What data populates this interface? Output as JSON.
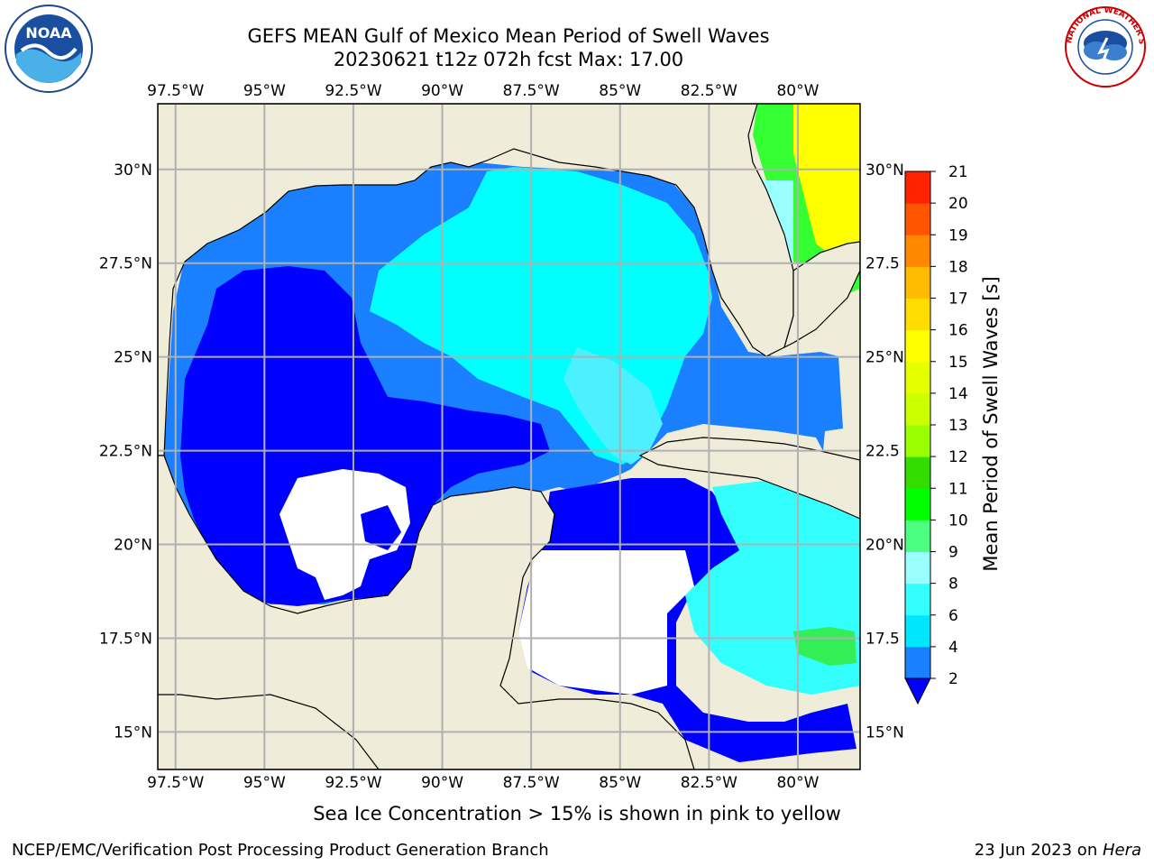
{
  "header": {
    "title": "GEFS MEAN Gulf of Mexico Mean Period of Swell Waves",
    "subtitle": "20230621 t12z 072h fcst   Max: 17.00"
  },
  "logos": {
    "left": {
      "icon": "noaa-logo-icon",
      "text": "NOAA"
    },
    "right": {
      "icon": "nws-logo-icon",
      "text": "NATIONAL WEATHER SERVICE"
    }
  },
  "map": {
    "lon_range": [
      -98.0,
      -78.25
    ],
    "lat_range": [
      14.0,
      31.75
    ],
    "lon_ticks": [
      {
        "value": -97.5,
        "label": "97.5°W"
      },
      {
        "value": -95.0,
        "label": "95°W"
      },
      {
        "value": -92.5,
        "label": "92.5°W"
      },
      {
        "value": -90.0,
        "label": "90°W"
      },
      {
        "value": -87.5,
        "label": "87.5°W"
      },
      {
        "value": -85.0,
        "label": "85°W"
      },
      {
        "value": -82.5,
        "label": "82.5°W"
      },
      {
        "value": -80.0,
        "label": "80°W"
      }
    ],
    "lat_ticks_left": [
      {
        "value": 30.0,
        "label": "30°N"
      },
      {
        "value": 27.5,
        "label": "27.5°N"
      },
      {
        "value": 25.0,
        "label": "25°N"
      },
      {
        "value": 22.5,
        "label": "22.5°N"
      },
      {
        "value": 20.0,
        "label": "20°N"
      },
      {
        "value": 17.5,
        "label": "17.5°N"
      },
      {
        "value": 15.0,
        "label": "15°N"
      }
    ],
    "lat_ticks_right": [
      {
        "value": 30.0,
        "label": "30°N"
      },
      {
        "value": 27.5,
        "label": "27.5"
      },
      {
        "value": 25.0,
        "label": "25°N"
      },
      {
        "value": 22.5,
        "label": "22.5"
      },
      {
        "value": 20.0,
        "label": "20°N"
      },
      {
        "value": 17.5,
        "label": "17.5"
      },
      {
        "value": 15.0,
        "label": "15°N"
      }
    ],
    "land_color": "#efecda",
    "grid_color": "#b0b0b0",
    "regions": [
      {
        "name": "deep-gulf-blue",
        "color": "#0000ff"
      },
      {
        "name": "mid-gulf-blue",
        "color": "#1a80ff"
      },
      {
        "name": "eastern-gulf-cyan",
        "color": "#00ffff"
      },
      {
        "name": "central-light-cyan",
        "color": "#4df0ff"
      },
      {
        "name": "atlantic-green",
        "color": "#33ff33"
      },
      {
        "name": "atlantic-yellow",
        "color": "#ffff00"
      }
    ]
  },
  "colorbar": {
    "label": "Mean Period of Swell Waves [s]",
    "levels": [
      2,
      4,
      6,
      8,
      9,
      10,
      11,
      12,
      13,
      14,
      15,
      16,
      17,
      18,
      19,
      20,
      21
    ],
    "tick_labels": [
      "2",
      "4",
      "6",
      "8",
      "9",
      "10",
      "11",
      "12",
      "13",
      "14",
      "15",
      "16",
      "17",
      "18",
      "19",
      "20",
      "21"
    ],
    "colors": [
      "#1a80ff",
      "#00e6ff",
      "#33ffff",
      "#99ffff",
      "#4dff80",
      "#00ff00",
      "#33dd00",
      "#99ff00",
      "#ccff00",
      "#e6ff00",
      "#ffff00",
      "#ffdd00",
      "#ffbb00",
      "#ff8800",
      "#ff5500",
      "#ff2200"
    ],
    "extend_color": "#0000ff"
  },
  "footer": {
    "caption": "Sea Ice Concentration > 15% is shown in pink to yellow",
    "left": "NCEP/EMC/Verification Post Processing Product Generation Branch",
    "date": "23 Jun 2023 on ",
    "host": "Hera"
  }
}
